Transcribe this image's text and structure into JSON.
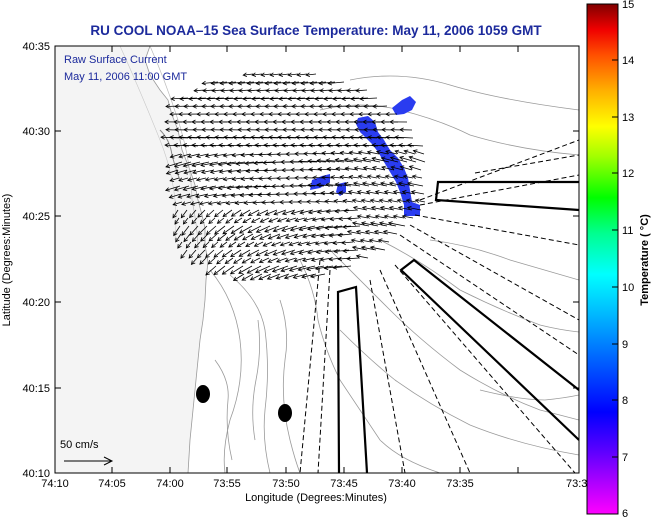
{
  "title": "RU COOL  NOAA–15  Sea Surface Temperature:  May 11, 2006 1059 GMT",
  "inset": {
    "line1": "Raw Surface Current",
    "line2": "May 11, 2006 11:00 GMT"
  },
  "scale_label": "50 cm/s",
  "axes": {
    "xlabel": "Longitude (Degrees:Minutes)",
    "ylabel": "Latitude (Degrees:Minutes)",
    "xticks": [
      "74:10",
      "74:05",
      "74:00",
      "73:55",
      "73:50",
      "73:45",
      "73:40",
      "73:35",
      "73:3"
    ],
    "yticks": [
      "40:35",
      "40:30",
      "40:25",
      "40:20",
      "40:15",
      "40:10"
    ]
  },
  "colorbar": {
    "label": "Temperature ( °C)",
    "ticks": [
      "15",
      "14",
      "13",
      "12",
      "11",
      "10",
      "9",
      "8",
      "7",
      "6"
    ],
    "range": [
      6,
      15
    ],
    "colors": [
      "#ff00ff",
      "#7f00ff",
      "#0000ff",
      "#0080ff",
      "#00ffff",
      "#00ff80",
      "#00ff00",
      "#80ff00",
      "#ffff00",
      "#ffbf00",
      "#ff8000",
      "#ff0000",
      "#7f0000"
    ]
  },
  "colors": {
    "title": "#1c2a9c",
    "sst_patch": "#2a3cf0",
    "land": "#f4f4f4",
    "contour": "#9a9a9a"
  }
}
